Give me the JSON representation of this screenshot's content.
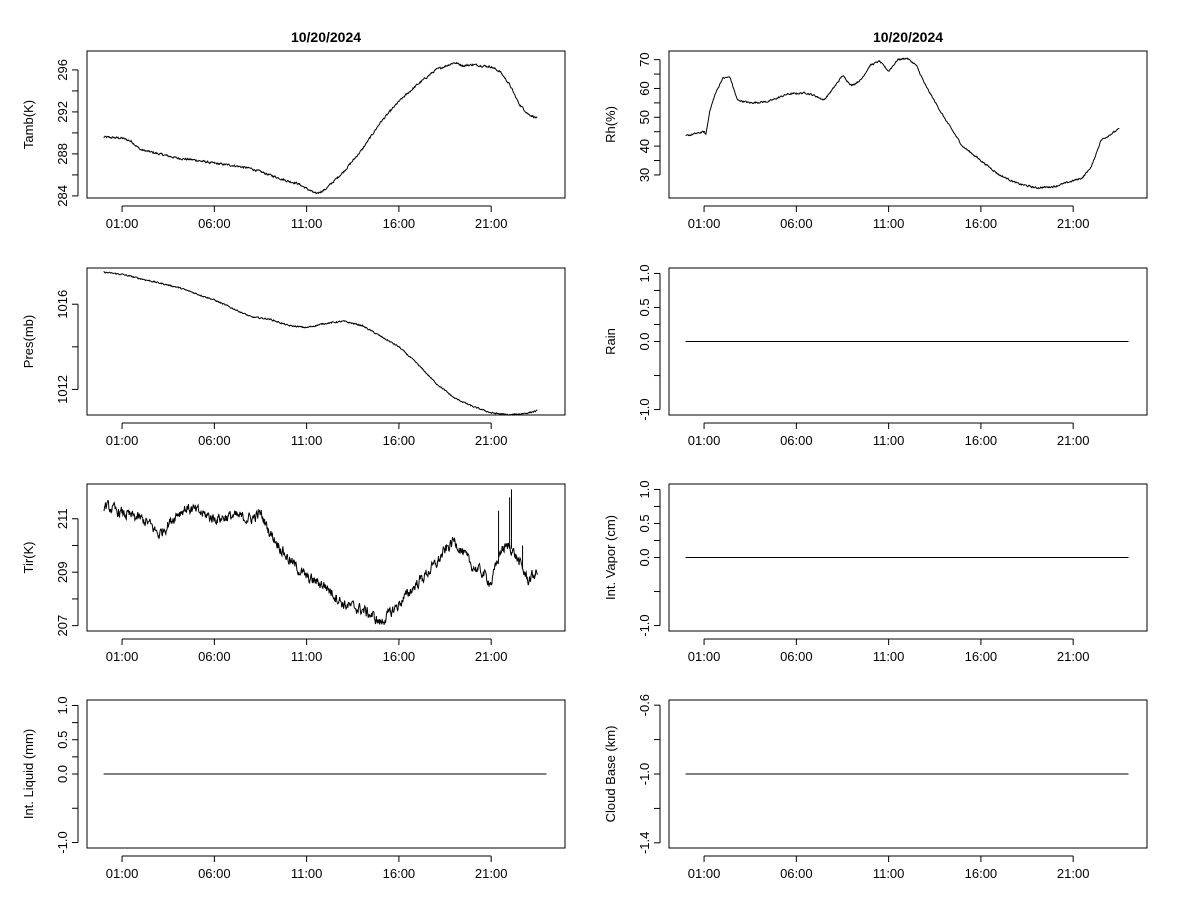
{
  "chart_data": [
    {
      "type": "line",
      "panel": "tamb",
      "title": "10/20/2024",
      "ylabel": "Tamb(K)",
      "x_ticks": [
        "01:00",
        "06:00",
        "11:00",
        "16:00",
        "21:00"
      ],
      "y_ticks": [
        "284",
        "288",
        "292",
        "296"
      ],
      "ylim": [
        283.8,
        297.8
      ],
      "xlim": [
        -0.9,
        25.0
      ],
      "grid": false,
      "series": [
        {
          "noise": 0.12,
          "x": [
            0.0,
            1.0,
            1.5,
            2.0,
            3.0,
            4.0,
            5.0,
            6.0,
            7.0,
            8.0,
            9.0,
            10.0,
            10.5,
            11.0,
            11.5,
            12.0,
            13.0,
            14.0,
            15.0,
            16.0,
            17.0,
            18.0,
            19.0,
            19.5,
            20.0,
            21.0,
            21.5,
            22.0,
            22.5,
            23.0,
            23.5
          ],
          "y": [
            289.6,
            289.5,
            289.2,
            288.4,
            288.0,
            287.6,
            287.4,
            287.1,
            286.9,
            286.6,
            286.0,
            285.4,
            285.2,
            284.7,
            284.2,
            284.6,
            286.3,
            288.4,
            291.0,
            293.0,
            294.6,
            296.0,
            296.7,
            296.4,
            296.5,
            296.3,
            295.8,
            294.6,
            292.8,
            291.8,
            291.4
          ]
        }
      ]
    },
    {
      "type": "line",
      "panel": "rh",
      "title": "10/20/2024",
      "ylabel": "Rh(%)",
      "x_ticks": [
        "01:00",
        "06:00",
        "11:00",
        "16:00",
        "21:00"
      ],
      "y_ticks": [
        "30",
        "40",
        "50",
        "60",
        "70"
      ],
      "ylim": [
        22,
        73
      ],
      "xlim": [
        -0.9,
        25.0
      ],
      "grid": false,
      "series": [
        {
          "noise": 0.35,
          "x": [
            0.0,
            1.0,
            1.1,
            1.3,
            1.6,
            2.0,
            2.4,
            2.8,
            3.5,
            4.5,
            5.5,
            6.5,
            7.0,
            7.5,
            8.0,
            8.5,
            9.0,
            9.5,
            10.0,
            10.5,
            11.0,
            11.5,
            12.0,
            12.5,
            13.0,
            14.0,
            15.0,
            16.0,
            17.0,
            18.0,
            19.0,
            20.0,
            21.0,
            21.5,
            22.0,
            22.5,
            23.0,
            23.5
          ],
          "y": [
            43.5,
            45.0,
            44.0,
            52.0,
            58.0,
            63.5,
            64.0,
            56.0,
            55.0,
            55.5,
            58.0,
            58.5,
            57.5,
            56.0,
            60.0,
            64.5,
            61.0,
            63.0,
            68.0,
            69.5,
            66.0,
            70.0,
            70.5,
            68.0,
            61.0,
            50.0,
            40.0,
            35.0,
            30.0,
            27.0,
            25.5,
            26.0,
            28.0,
            29.0,
            33.0,
            42.0,
            44.0,
            46.0
          ]
        }
      ]
    },
    {
      "type": "line",
      "panel": "pres",
      "title": "",
      "ylabel": "Pres(mb)",
      "x_ticks": [
        "01:00",
        "06:00",
        "11:00",
        "16:00",
        "21:00"
      ],
      "y_ticks": [
        "1012",
        "1016"
      ],
      "ylim": [
        1010.8,
        1017.7
      ],
      "xlim": [
        -0.9,
        25.0
      ],
      "grid": false,
      "series": [
        {
          "noise": 0.04,
          "x": [
            0.0,
            1.0,
            2.0,
            3.0,
            4.0,
            5.0,
            6.0,
            7.0,
            8.0,
            9.0,
            10.0,
            11.0,
            12.0,
            13.0,
            14.0,
            15.0,
            16.0,
            17.0,
            18.0,
            19.0,
            20.0,
            21.0,
            22.0,
            23.0,
            23.5
          ],
          "y": [
            1017.5,
            1017.4,
            1017.2,
            1017.0,
            1016.8,
            1016.5,
            1016.2,
            1015.8,
            1015.4,
            1015.3,
            1015.0,
            1014.9,
            1015.1,
            1015.2,
            1015.0,
            1014.5,
            1014.0,
            1013.2,
            1012.3,
            1011.6,
            1011.2,
            1010.9,
            1010.8,
            1010.9,
            1011.0
          ]
        }
      ]
    },
    {
      "type": "line",
      "panel": "rain",
      "title": "",
      "ylabel": "Rain",
      "x_ticks": [
        "01:00",
        "06:00",
        "11:00",
        "16:00",
        "21:00"
      ],
      "y_ticks": [
        "-1.0",
        "0.0",
        "0.5",
        "1.0"
      ],
      "ylim": [
        -1.08,
        1.08
      ],
      "xlim": [
        -0.9,
        25.0
      ],
      "grid": false,
      "series": [
        {
          "noise": 0,
          "x": [
            0.0,
            24.0
          ],
          "y": [
            0.0,
            0.0
          ]
        }
      ]
    },
    {
      "type": "line",
      "panel": "tir",
      "title": "",
      "ylabel": "Tir(K)",
      "x_ticks": [
        "01:00",
        "06:00",
        "11:00",
        "16:00",
        "21:00"
      ],
      "y_ticks": [
        "207",
        "209",
        "211"
      ],
      "ylim": [
        206.8,
        212.3
      ],
      "xlim": [
        -0.9,
        25.0
      ],
      "grid": false,
      "series": [
        {
          "noise": 0.25,
          "x": [
            0.0,
            1.0,
            2.0,
            2.5,
            3.0,
            3.5,
            4.0,
            4.5,
            5.0,
            6.0,
            7.0,
            8.0,
            8.5,
            9.0,
            10.0,
            11.0,
            12.0,
            13.0,
            14.0,
            14.5,
            15.0,
            16.0,
            17.0,
            18.0,
            18.5,
            19.0,
            20.0,
            20.5,
            21.0,
            21.5,
            22.0,
            22.5,
            23.0,
            23.5
          ],
          "y": [
            211.5,
            211.2,
            211.0,
            210.8,
            210.4,
            210.8,
            211.2,
            211.4,
            211.3,
            211.0,
            211.1,
            211.0,
            211.2,
            210.5,
            209.5,
            208.8,
            208.5,
            207.8,
            207.6,
            207.4,
            207.1,
            207.8,
            208.6,
            209.3,
            209.8,
            210.2,
            209.2,
            209.0,
            208.6,
            209.8,
            210.0,
            209.4,
            208.7,
            209.0
          ]
        }
      ],
      "spikes": [
        {
          "x": 21.4,
          "y": 211.3
        },
        {
          "x": 22.0,
          "y": 211.8
        },
        {
          "x": 22.1,
          "y": 212.1
        },
        {
          "x": 22.7,
          "y": 210.0
        }
      ]
    },
    {
      "type": "line",
      "panel": "vapor",
      "title": "",
      "ylabel": "Int. Vapor (cm)",
      "x_ticks": [
        "01:00",
        "06:00",
        "11:00",
        "16:00",
        "21:00"
      ],
      "y_ticks": [
        "-1.0",
        "0.0",
        "0.5",
        "1.0"
      ],
      "ylim": [
        -1.08,
        1.08
      ],
      "xlim": [
        -0.9,
        25.0
      ],
      "grid": false,
      "series": [
        {
          "noise": 0,
          "x": [
            0.0,
            24.0
          ],
          "y": [
            0.0,
            0.0
          ]
        }
      ]
    },
    {
      "type": "line",
      "panel": "liquid",
      "title": "",
      "ylabel": "Int. Liquid (mm)",
      "x_ticks": [
        "01:00",
        "06:00",
        "11:00",
        "16:00",
        "21:00"
      ],
      "y_ticks": [
        "-1.0",
        "0.0",
        "0.5",
        "1.0"
      ],
      "ylim": [
        -1.08,
        1.08
      ],
      "xlim": [
        -0.9,
        25.0
      ],
      "grid": false,
      "series": [
        {
          "noise": 0,
          "x": [
            0.0,
            24.0
          ],
          "y": [
            0.0,
            0.0
          ]
        }
      ]
    },
    {
      "type": "line",
      "panel": "cloudbase",
      "title": "",
      "ylabel": "Cloud Base (km)",
      "x_ticks": [
        "01:00",
        "06:00",
        "11:00",
        "16:00",
        "21:00"
      ],
      "y_ticks": [
        "-1.4",
        "-1.0",
        "-0.6"
      ],
      "ylim": [
        -1.43,
        -0.57
      ],
      "xlim": [
        -0.9,
        25.0
      ],
      "grid": false,
      "series": [
        {
          "noise": 0,
          "x": [
            0.0,
            24.0
          ],
          "y": [
            -1.0,
            -1.0
          ]
        }
      ]
    }
  ]
}
